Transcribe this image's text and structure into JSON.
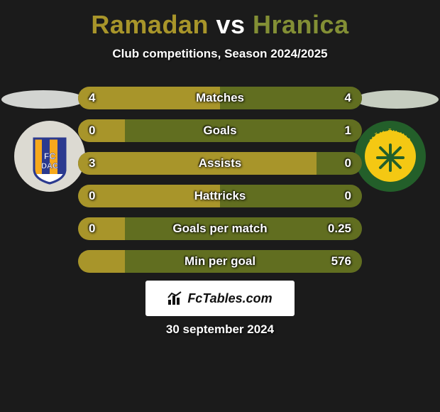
{
  "colors": {
    "bg": "#1b1b1b",
    "bar_bg": "#2b2b2b",
    "bar_left": "#a8952a",
    "bar_right": "#616e20",
    "player1_name": "#a8952a",
    "vs": "#ffffff",
    "player2_name": "#838f35",
    "ellipse_left": "#d2d4d1",
    "ellipse_right": "#c6cdc0"
  },
  "title": {
    "p1": "Ramadan",
    "vs": "vs",
    "p2": "Hranica"
  },
  "subtitle": "Club competitions, Season 2024/2025",
  "badges": {
    "left": {
      "bg": "#dcdad2",
      "label": "FC DAC",
      "stripes": [
        "#f6a81c",
        "#2b3a8f"
      ]
    },
    "right": {
      "bg": "#235f2a",
      "label": "MŠK ŽILINA",
      "inner": "#f4c813"
    }
  },
  "bars": [
    {
      "label": "Matches",
      "left_val": "4",
      "right_val": "4",
      "left_pct": 50.0,
      "right_pct": 50.0
    },
    {
      "label": "Goals",
      "left_val": "0",
      "right_val": "1",
      "left_pct": 16.5,
      "right_pct": 83.5
    },
    {
      "label": "Assists",
      "left_val": "3",
      "right_val": "0",
      "left_pct": 84.0,
      "right_pct": 16.0
    },
    {
      "label": "Hattricks",
      "left_val": "0",
      "right_val": "0",
      "left_pct": 50.0,
      "right_pct": 50.0
    },
    {
      "label": "Goals per match",
      "left_val": "0",
      "right_val": "0.25",
      "left_pct": 16.5,
      "right_pct": 83.5
    },
    {
      "label": "Min per goal",
      "left_val": "",
      "right_val": "576",
      "left_pct": 16.5,
      "right_pct": 83.5
    }
  ],
  "watermark": "FcTables.com",
  "date": "30 september 2024"
}
